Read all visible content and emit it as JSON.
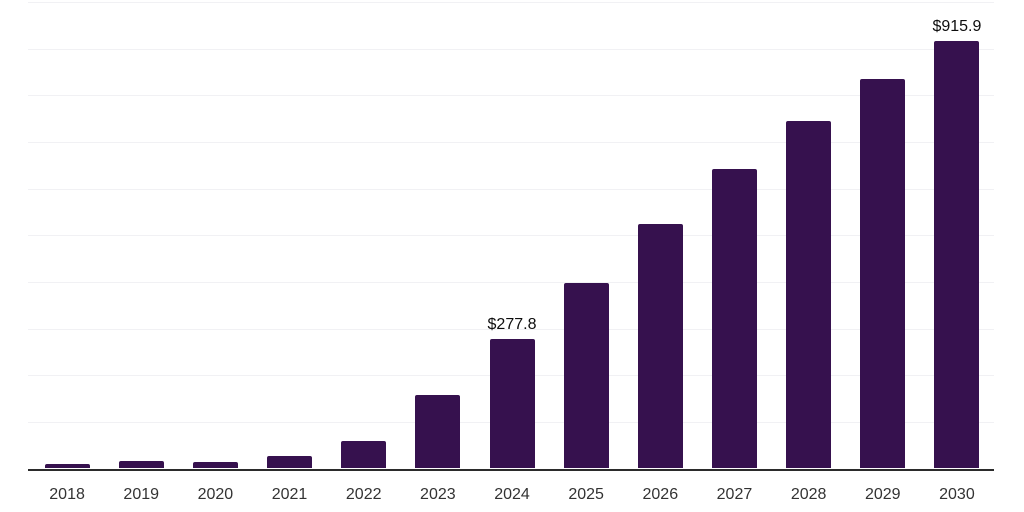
{
  "chart_data": {
    "type": "bar",
    "title": "",
    "xlabel": "",
    "ylabel": "",
    "categories": [
      "2018",
      "2019",
      "2020",
      "2021",
      "2022",
      "2023",
      "2024",
      "2025",
      "2026",
      "2027",
      "2028",
      "2029",
      "2030"
    ],
    "values": [
      10.7,
      16.8,
      14.7,
      26.9,
      57.9,
      158.6,
      277.8,
      397.6,
      523.4,
      641.3,
      744.8,
      835.7,
      915.9
    ],
    "value_labels": {
      "2024": "$277.8",
      "2030": "$915.9"
    },
    "ylim": [
      0,
      1000
    ],
    "gridline_step": 100,
    "grid": "horizontal",
    "legend": "none",
    "colors": {
      "bar": "#36114e",
      "axis": "#2b2b2b",
      "gridline": "#f1f1f4",
      "tick_text": "#333333",
      "value_label_text": "#0d0d0d"
    }
  }
}
